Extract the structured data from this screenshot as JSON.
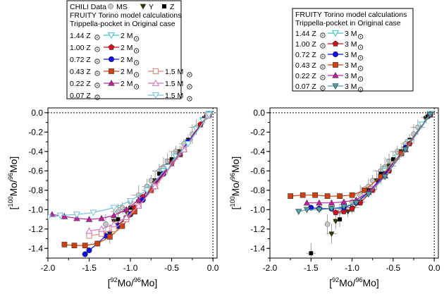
{
  "chart_data": [
    {
      "type": "scatter",
      "panel": "left",
      "xlabel_parts": [
        "[",
        "92",
        "Mo/",
        "96",
        "Mo]"
      ],
      "ylabel_parts": [
        "[",
        "100",
        "Mo/",
        "96",
        "Mo]"
      ],
      "xlim": [
        -2.0,
        0.05
      ],
      "ylim": [
        -1.5,
        0.05
      ],
      "xticks": [
        -2.0,
        -1.5,
        -1.0,
        -0.5,
        0.0
      ],
      "xtick_labels": [
        "-2.0",
        "-1.5",
        "-1.0",
        "-0.5",
        "0.0"
      ],
      "yticks": [
        0.0,
        -0.2,
        -0.4,
        -0.6,
        -0.8,
        -1.0,
        -1.2,
        -1.4
      ],
      "ytick_labels": [
        "0.0",
        "-0.2",
        "-0.4",
        "-0.6",
        "-0.8",
        "-1.0",
        "-1.2",
        "-1.4"
      ],
      "legend": {
        "lines": [
          "CHILI Data",
          "FRUITY Torino model calculations",
          "Trippella-pocket in Original case"
        ],
        "data_labels": [
          "MS",
          "Y",
          "Z"
        ],
        "rows": [
          {
            "z": "1.44 Z",
            "entries": [
              {
                "mass": "2 M",
                "series": "m2_z144"
              }
            ]
          },
          {
            "z": "1.00 Z",
            "entries": [
              {
                "mass": "2 M",
                "series": "m2_z100"
              }
            ]
          },
          {
            "z": "0.72 Z",
            "entries": [
              {
                "mass": "2 M",
                "series": "m2_z072"
              }
            ]
          },
          {
            "z": "0.43 Z",
            "entries": [
              {
                "mass": "2 M",
                "series": "m2_z043"
              },
              {
                "mass": "1.5 M",
                "series": "m15_z043"
              }
            ]
          },
          {
            "z": "0.22 Z",
            "entries": [
              {
                "mass": "2 M",
                "series": "m2_z022"
              },
              {
                "mass": "1.5 M",
                "series": "m15_z022"
              }
            ]
          },
          {
            "z": "0.07 Z",
            "entries": [
              {
                "mass": "1.5 M",
                "series": "m15_z007"
              }
            ]
          }
        ]
      },
      "series": [
        {
          "key": "m2_z144",
          "name": "1.44 Z 2 M",
          "color": "#40c0c0",
          "marker": "tri_down_open",
          "x": [
            -0.05,
            -0.12,
            -0.2,
            -0.3,
            -0.45,
            -0.6,
            -0.75
          ],
          "y": [
            -0.01,
            -0.08,
            -0.17,
            -0.3,
            -0.45,
            -0.6,
            -0.78
          ]
        },
        {
          "key": "m2_z100",
          "name": "1.00 Z 2 M",
          "color": "#d01020",
          "marker": "pentagon",
          "x": [
            -0.05,
            -0.15,
            -0.3,
            -0.5,
            -0.7,
            -0.85,
            -0.95,
            -1.05,
            -1.15
          ],
          "y": [
            -0.02,
            -0.12,
            -0.3,
            -0.52,
            -0.72,
            -0.87,
            -0.98,
            -1.08,
            -1.16
          ]
        },
        {
          "key": "m2_z072",
          "name": "0.72 Z 2 M",
          "color": "#1010e0",
          "marker": "circle",
          "x": [
            -0.05,
            -0.3,
            -0.6,
            -0.85,
            -1.0,
            -1.15,
            -1.3,
            -1.4,
            -1.5,
            -1.55
          ],
          "y": [
            -0.02,
            -0.3,
            -0.63,
            -0.9,
            -1.05,
            -1.17,
            -1.27,
            -1.35,
            -1.42,
            -1.46
          ]
        },
        {
          "key": "m2_z043",
          "name": "0.43 Z 2 M",
          "color": "#d04010",
          "marker": "square",
          "x": [
            -0.05,
            -0.4,
            -0.75,
            -0.95,
            -1.1,
            -1.25,
            -1.4,
            -1.55,
            -1.68,
            -1.8
          ],
          "y": [
            -0.02,
            -0.43,
            -0.8,
            -1.02,
            -1.17,
            -1.28,
            -1.35,
            -1.37,
            -1.37,
            -1.36
          ]
        },
        {
          "key": "m2_z022",
          "name": "0.22 Z 2 M",
          "color": "#c020a0",
          "marker": "tri_up",
          "x": [
            -0.05,
            -0.4,
            -0.7,
            -0.9,
            -1.05,
            -1.2,
            -1.35,
            -1.5,
            -1.65,
            -1.8,
            -1.95
          ],
          "y": [
            -0.02,
            -0.42,
            -0.72,
            -0.9,
            -1.0,
            -1.06,
            -1.09,
            -1.1,
            -1.09,
            -1.07,
            -1.05
          ]
        },
        {
          "key": "m15_z043",
          "name": "0.43 Z 1.5 M",
          "color": "#e08070",
          "marker": "square_open",
          "x": [
            -0.06,
            -0.35,
            -0.7,
            -0.9,
            -1.05,
            -1.2,
            -1.35,
            -1.5
          ],
          "y": [
            -0.03,
            -0.38,
            -0.76,
            -0.96,
            -1.1,
            -1.2,
            -1.25,
            -1.27
          ]
        },
        {
          "key": "m15_z022",
          "name": "0.22 Z 1.5 M",
          "color": "#d070c0",
          "marker": "tri_up_open",
          "x": [
            -0.06,
            -0.35,
            -0.7,
            -0.9,
            -1.05,
            -1.2,
            -1.35,
            -1.5
          ],
          "y": [
            -0.03,
            -0.38,
            -0.76,
            -0.96,
            -1.08,
            -1.15,
            -1.2,
            -1.22
          ]
        },
        {
          "key": "m15_z007",
          "name": "0.07 Z 1.5 M",
          "color": "#70c0d8",
          "marker": "tri_down_open",
          "x": [
            -0.05,
            -0.3,
            -0.55,
            -0.8,
            -1.0,
            -1.2,
            -1.45,
            -1.65,
            -1.85,
            -2.0
          ],
          "y": [
            -0.02,
            -0.32,
            -0.56,
            -0.8,
            -0.91,
            -0.98,
            -1.03,
            -1.05,
            -1.06,
            -1.08
          ]
        }
      ],
      "data_points": {
        "MS": {
          "x": [
            -0.05,
            -0.1,
            -0.2,
            -0.25,
            -0.35,
            -0.45,
            -0.55,
            -0.6,
            -0.65,
            -0.75,
            -0.8,
            -0.9,
            -1.0,
            -1.1,
            -1.15,
            -1.3
          ],
          "y": [
            -0.02,
            -0.05,
            -0.15,
            -0.22,
            -0.32,
            -0.4,
            -0.5,
            -0.56,
            -0.6,
            -0.7,
            -0.76,
            -0.85,
            -0.92,
            -0.98,
            -1.02,
            -1.15
          ]
        },
        "Y": {
          "x": [
            -0.1,
            -0.4,
            -0.55,
            -0.7,
            -0.9,
            -1.05,
            -1.2,
            -1.25
          ],
          "y": [
            -0.06,
            -0.4,
            -0.55,
            -0.7,
            -0.92,
            -1.02,
            -1.12,
            -1.25
          ]
        },
        "Z": {
          "x": [
            -0.08,
            -0.3,
            -0.5,
            -0.65,
            -0.8,
            -1.0,
            -1.15
          ],
          "y": [
            -0.04,
            -0.28,
            -0.48,
            -0.63,
            -0.8,
            -0.98,
            -1.1
          ]
        }
      }
    },
    {
      "type": "scatter",
      "panel": "right",
      "xlabel_parts": [
        "[",
        "92",
        "Mo/",
        "96",
        "Mo]"
      ],
      "ylabel_parts": [
        "[",
        "100",
        "Mo/",
        "96",
        "Mo]"
      ],
      "xlim": [
        -2.0,
        0.05
      ],
      "ylim": [
        -1.5,
        0.05
      ],
      "xticks": [
        -2.0,
        -1.5,
        -1.0,
        -0.5,
        0.0
      ],
      "xtick_labels": [
        "-2.0",
        "-1.5",
        "-1.0",
        "-0.5",
        "0.0"
      ],
      "yticks": [
        0.0,
        -0.2,
        -0.4,
        -0.6,
        -0.8,
        -1.0,
        -1.2,
        -1.4
      ],
      "ytick_labels": [
        "0.0",
        "-0.2",
        "-0.4",
        "-0.6",
        "-0.8",
        "-1.0",
        "-1.2",
        "-1.4"
      ],
      "legend": {
        "lines": [
          "FRUITY Torino model calculations",
          "Trippella-pocket in Original case"
        ],
        "rows": [
          {
            "z": "1.44 Z",
            "entries": [
              {
                "mass": "3 M",
                "series": "m3_z144"
              }
            ]
          },
          {
            "z": "1.00 Z",
            "entries": [
              {
                "mass": "3 M",
                "series": "m3_z100"
              }
            ]
          },
          {
            "z": "0.72 Z",
            "entries": [
              {
                "mass": "3 M",
                "series": "m3_z072"
              }
            ]
          },
          {
            "z": "0.43 Z",
            "entries": [
              {
                "mass": "3 M",
                "series": "m3_z043"
              }
            ]
          },
          {
            "z": "0.22 Z",
            "entries": [
              {
                "mass": "3 M",
                "series": "m3_z022"
              }
            ]
          },
          {
            "z": "0.07 Z",
            "entries": [
              {
                "mass": "3 M",
                "series": "m3_z007"
              }
            ]
          }
        ]
      },
      "series": [
        {
          "key": "m3_z144",
          "name": "1.44 Z 3 M",
          "color": "#40c0c0",
          "marker": "tri_down_open",
          "x": [
            -0.05,
            -0.15,
            -0.3,
            -0.45,
            -0.6
          ],
          "y": [
            -0.01,
            -0.12,
            -0.3,
            -0.46,
            -0.6
          ]
        },
        {
          "key": "m3_z100",
          "name": "1.00 Z 3 M",
          "color": "#d01020",
          "marker": "pentagon",
          "x": [
            -0.05,
            -0.3,
            -0.55,
            -0.75,
            -0.9,
            -1.0,
            -1.1,
            -1.2
          ],
          "y": [
            -0.02,
            -0.32,
            -0.6,
            -0.8,
            -0.93,
            -0.99,
            -1.02,
            -1.03
          ]
        },
        {
          "key": "m3_z072",
          "name": "0.72 Z 3 M",
          "color": "#1010e0",
          "marker": "circle",
          "x": [
            -0.05,
            -0.35,
            -0.6,
            -0.8,
            -0.95,
            -1.1,
            -1.25,
            -1.4,
            -1.5
          ],
          "y": [
            -0.02,
            -0.36,
            -0.63,
            -0.82,
            -0.93,
            -0.98,
            -0.99,
            -0.99,
            -0.98
          ]
        },
        {
          "key": "m3_z043",
          "name": "0.43 Z 3 M",
          "color": "#d04010",
          "marker": "square",
          "x": [
            -0.05,
            -0.4,
            -0.65,
            -0.85,
            -1.0,
            -1.15,
            -1.3,
            -1.45,
            -1.6,
            -1.75
          ],
          "y": [
            -0.02,
            -0.42,
            -0.66,
            -0.8,
            -0.85,
            -0.86,
            -0.86,
            -0.85,
            -0.85,
            -0.86
          ]
        },
        {
          "key": "m3_z022",
          "name": "0.22 Z 3 M",
          "color": "#c020a0",
          "marker": "tri_up",
          "x": [
            -0.05,
            -0.35,
            -0.6,
            -0.8,
            -0.95,
            -1.1,
            -1.25,
            -1.4,
            -1.55
          ],
          "y": [
            -0.02,
            -0.38,
            -0.65,
            -0.82,
            -0.9,
            -0.92,
            -0.93,
            -0.93,
            -0.93
          ]
        },
        {
          "key": "m3_z007",
          "name": "0.07 Z 3 M",
          "color": "#50a0a8",
          "marker": "tri_down",
          "x": [
            -0.05,
            -0.35,
            -0.6,
            -0.8,
            -0.95,
            -1.1,
            -1.25,
            -1.4,
            -1.55,
            -1.65
          ],
          "y": [
            -0.02,
            -0.38,
            -0.66,
            -0.84,
            -0.93,
            -0.97,
            -0.99,
            -1.0,
            -1.0,
            -1.02
          ]
        }
      ],
      "data_points": {
        "MS": {
          "x": [
            -0.05,
            -0.1,
            -0.2,
            -0.25,
            -0.35,
            -0.45,
            -0.55,
            -0.6,
            -0.65,
            -0.75,
            -0.8,
            -0.9,
            -1.0,
            -1.1,
            -1.15,
            -1.3
          ],
          "y": [
            -0.02,
            -0.05,
            -0.15,
            -0.22,
            -0.32,
            -0.4,
            -0.5,
            -0.56,
            -0.6,
            -0.7,
            -0.76,
            -0.85,
            -0.92,
            -0.98,
            -1.02,
            -1.15
          ]
        },
        "Y": {
          "x": [
            -0.1,
            -0.4,
            -0.55,
            -0.7,
            -0.9,
            -1.05,
            -1.2,
            -1.25
          ],
          "y": [
            -0.06,
            -0.4,
            -0.55,
            -0.7,
            -0.92,
            -1.02,
            -1.12,
            -1.25
          ]
        },
        "Z": {
          "x": [
            -0.08,
            -0.3,
            -0.5,
            -0.65,
            -0.8,
            -1.0,
            -1.15,
            -1.5
          ],
          "y": [
            -0.04,
            -0.28,
            -0.48,
            -0.63,
            -0.8,
            -0.98,
            -1.1,
            -1.45
          ]
        }
      }
    }
  ]
}
